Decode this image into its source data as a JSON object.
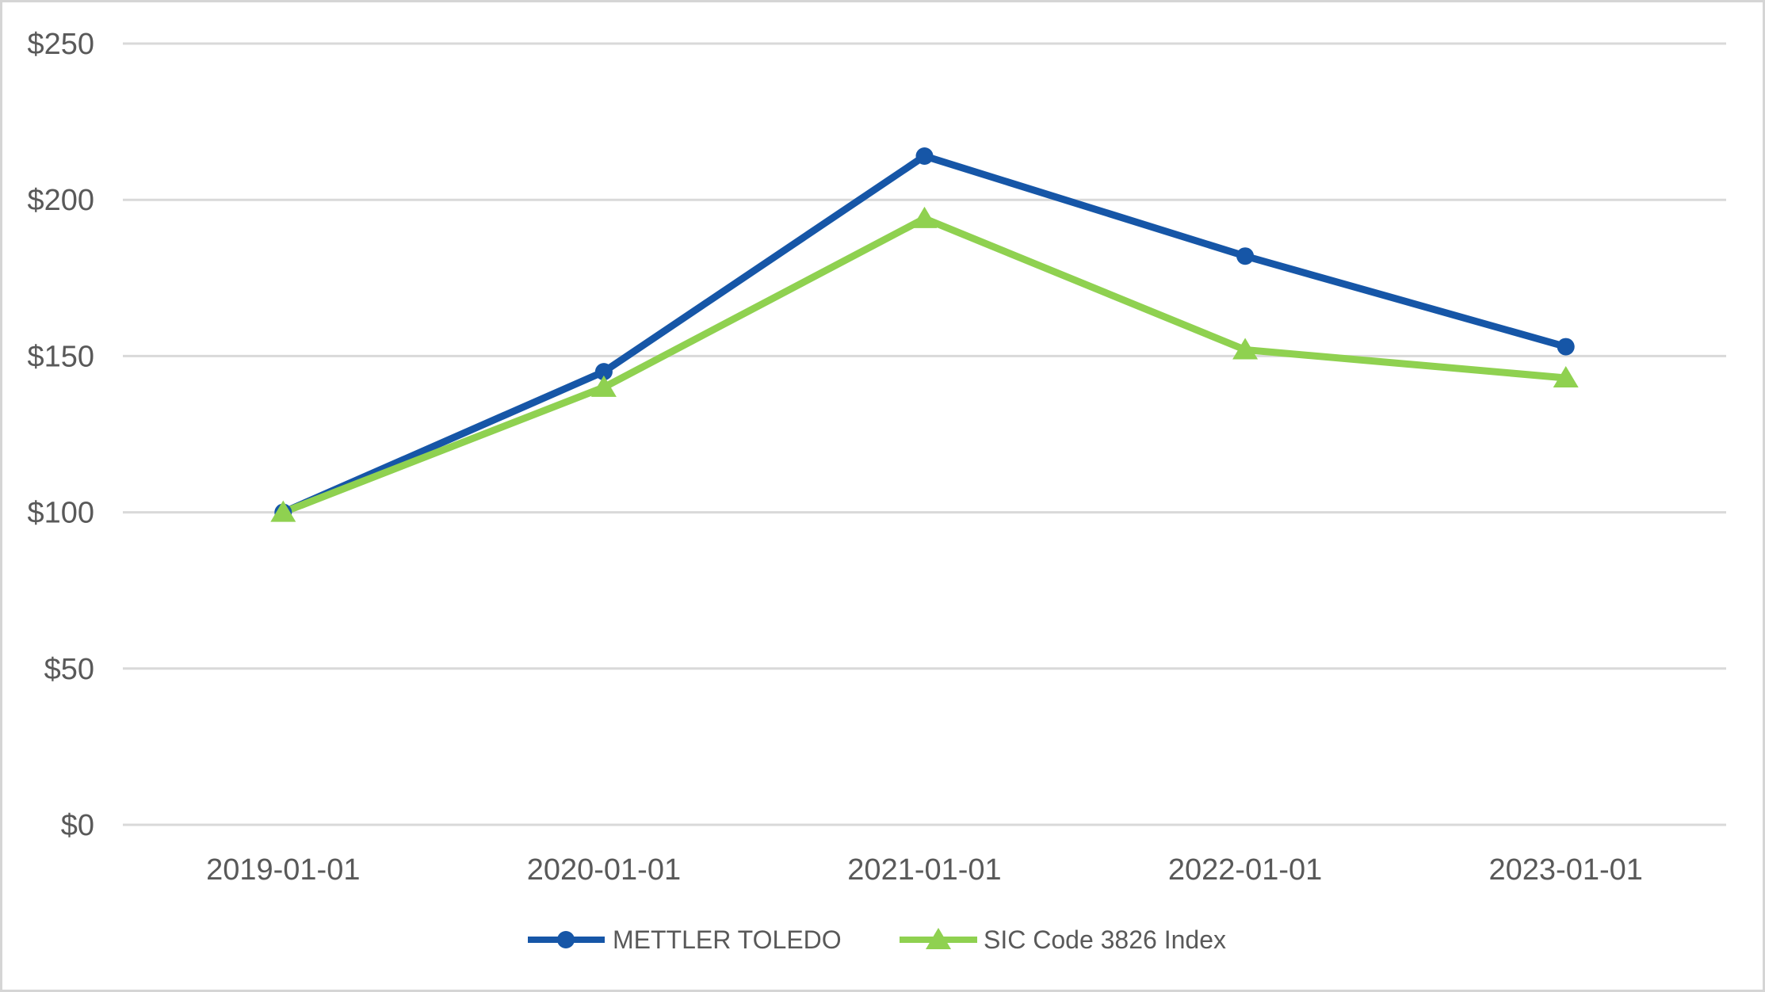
{
  "chart_data": {
    "type": "line",
    "title": "",
    "categories": [
      "2019-01-01",
      "2020-01-01",
      "2021-01-01",
      "2022-01-01",
      "2023-01-01"
    ],
    "series": [
      {
        "name": "METTLER TOLEDO",
        "values": [
          100,
          145,
          214,
          182,
          153
        ],
        "color": "#1656A7",
        "marker": "circle"
      },
      {
        "name": "SIC Code 3826 Index",
        "values": [
          100,
          140,
          194,
          152,
          143
        ],
        "color": "#8FD150",
        "marker": "triangle"
      }
    ],
    "ylim": [
      0,
      250
    ],
    "ytick_step": 50,
    "ytick_labels": [
      "$0",
      "$50",
      "$100",
      "$150",
      "$200",
      "$250"
    ],
    "ytick_prefix": "$",
    "grid": "horizontal",
    "gridline_color": "#D9D9D9",
    "axis_text_color": "#595959",
    "legend_position": "bottom-center",
    "background_color": "#FFFFFF",
    "frame_border_color": "#D5D5D5"
  }
}
